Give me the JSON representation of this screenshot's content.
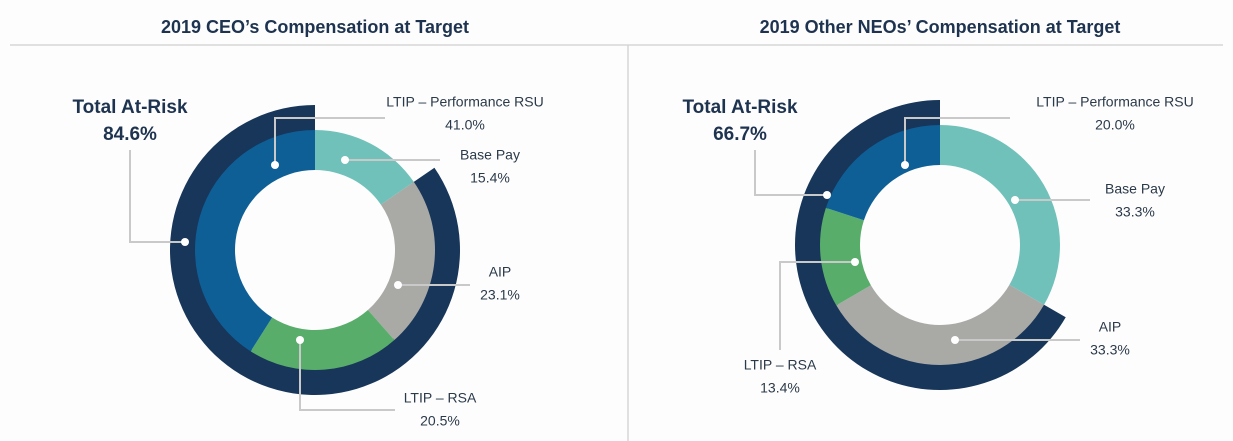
{
  "chart_data": [
    {
      "type": "donut",
      "title": "2019 CEO’s Compensation at Target",
      "categories": [
        "Base Pay",
        "AIP",
        "LTIP – RSA",
        "LTIP – Performance RSU"
      ],
      "values": [
        15.4,
        23.1,
        20.5,
        41.0
      ],
      "value_labels": [
        "15.4%",
        "23.1%",
        "20.5%",
        "41.0%"
      ],
      "colors": [
        "#6fc1b9",
        "#a9a9a6",
        "#58ad6a",
        "#0f5f97"
      ],
      "at_risk": {
        "name": "Total At-Risk",
        "value": 84.6,
        "label": "84.6%",
        "color": "#17365a"
      }
    },
    {
      "type": "donut",
      "title": "2019 Other NEOs’ Compensation at Target",
      "categories": [
        "Base Pay",
        "AIP",
        "LTIP – RSA",
        "LTIP – Performance RSU"
      ],
      "values": [
        33.3,
        33.3,
        13.4,
        20.0
      ],
      "value_labels": [
        "33.3%",
        "33.3%",
        "13.4%",
        "20.0%"
      ],
      "colors": [
        "#6fc1b9",
        "#a9a9a6",
        "#58ad6a",
        "#0f5f97"
      ],
      "at_risk": {
        "name": "Total At-Risk",
        "value": 66.7,
        "label": "66.7%",
        "color": "#17365a"
      }
    }
  ]
}
